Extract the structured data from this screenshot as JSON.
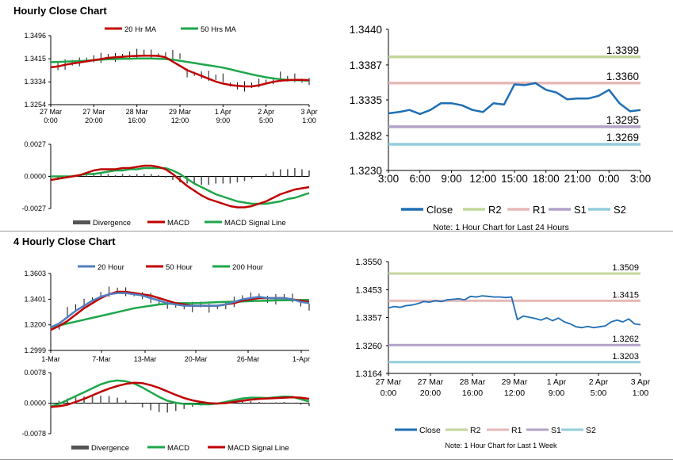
{
  "sections": {
    "hourly_title": "Hourly Close Chart",
    "four_hourly_title": "4 Hourly Close Chart"
  },
  "colors": {
    "close": "#1f6fb5",
    "ma20_hourly": "#c00000",
    "ma50_hourly": "#1fa64b",
    "ma20_4h": "#4f7fc0",
    "ma50_4h": "#c00000",
    "ma200_4h": "#1fa64b",
    "divergence": "#555555",
    "R2": "#c3d69b",
    "R1": "#e6b9b8",
    "S1": "#b3a2c7",
    "S2": "#93cddd"
  },
  "chart_data": [
    {
      "id": "hourly_price",
      "type": "line",
      "title": "Hourly Close Chart",
      "legend": [
        "20 Hr MA",
        "50 Hrs MA"
      ],
      "legend_placement": "top",
      "y_ticks": [
        "1.3496",
        "1.3415",
        "1.3334",
        "1.3254"
      ],
      "ylim": [
        1.3254,
        1.3496
      ],
      "x_ticks": [
        [
          "27 Mar",
          "0:00"
        ],
        [
          "27 Mar",
          "20:00"
        ],
        [
          "28 Mar",
          "16:00"
        ],
        [
          "29 Mar",
          "12:00"
        ],
        [
          "1 Apr",
          "9:00"
        ],
        [
          "2 Apr",
          "5:00"
        ],
        [
          "3 Apr",
          "1:00"
        ]
      ],
      "series": [
        {
          "name": "Price",
          "values": [
            1.3392,
            1.3388,
            1.3395,
            1.3401,
            1.3404,
            1.3412,
            1.3415,
            1.3418,
            1.3422,
            1.342,
            1.3425,
            1.3428,
            1.3432,
            1.3437,
            1.3432,
            1.3427,
            1.3425,
            1.3428,
            1.3424,
            1.3365,
            1.3362,
            1.3358,
            1.3355,
            1.335,
            1.3348,
            1.3325,
            1.332,
            1.3318,
            1.3322,
            1.333,
            1.3335,
            1.3338,
            1.3352,
            1.3345,
            1.3348,
            1.3338,
            1.3335
          ]
        },
        {
          "name": "20 Hr MA",
          "values": [
            1.3385,
            1.3388,
            1.3394,
            1.3398,
            1.3402,
            1.3406,
            1.341,
            1.3414,
            1.3418,
            1.342,
            1.3422,
            1.3424,
            1.3425,
            1.3426,
            1.3426,
            1.3425,
            1.342,
            1.3405,
            1.339,
            1.3375,
            1.3365,
            1.3355,
            1.3345,
            1.3335,
            1.3328,
            1.3323,
            1.332,
            1.3318,
            1.3318,
            1.3322,
            1.3328,
            1.3334,
            1.3338,
            1.334,
            1.3341,
            1.3341,
            1.334
          ]
        },
        {
          "name": "50 Hrs MA",
          "values": [
            1.3403,
            1.3404,
            1.3405,
            1.3406,
            1.3407,
            1.3408,
            1.341,
            1.3412,
            1.3413,
            1.3414,
            1.3415,
            1.3415,
            1.3416,
            1.3416,
            1.3416,
            1.3415,
            1.3414,
            1.3412,
            1.3408,
            1.3404,
            1.34,
            1.3396,
            1.3392,
            1.3388,
            1.3384,
            1.3378,
            1.3372,
            1.3366,
            1.336,
            1.3355,
            1.335,
            1.3346,
            1.3343,
            1.3341,
            1.334,
            1.3339,
            1.3338
          ]
        }
      ]
    },
    {
      "id": "hourly_macd",
      "type": "line",
      "legend": [
        "Divergence",
        "MACD",
        "MACD Signal Line"
      ],
      "legend_placement": "bottom",
      "y_ticks": [
        "0.0027",
        "0.0000",
        "-0.0027"
      ],
      "ylim": [
        -0.0027,
        0.0027
      ],
      "series": [
        {
          "name": "MACD",
          "values": [
            -0.0003,
            -0.0002,
            -0.0001,
            0.0,
            0.0001,
            0.0003,
            0.0005,
            0.0006,
            0.0006,
            0.0006,
            0.0007,
            0.0007,
            0.0008,
            0.0009,
            0.0009,
            0.0008,
            0.0006,
            0.0002,
            -0.0003,
            -0.0008,
            -0.0012,
            -0.0016,
            -0.0019,
            -0.0021,
            -0.0023,
            -0.0025,
            -0.0026,
            -0.0026,
            -0.0025,
            -0.0023,
            -0.0021,
            -0.0018,
            -0.0015,
            -0.0013,
            -0.0011,
            -0.001,
            -0.0009
          ]
        },
        {
          "name": "MACD Signal Line",
          "values": [
            0.0,
            0.0,
            0.0,
            0.0,
            0.0001,
            0.0002,
            0.0002,
            0.0003,
            0.0004,
            0.0005,
            0.0005,
            0.0006,
            0.0006,
            0.0007,
            0.0007,
            0.0007,
            0.0007,
            0.0005,
            0.0002,
            -0.0002,
            -0.0006,
            -0.0009,
            -0.0012,
            -0.0015,
            -0.0017,
            -0.0019,
            -0.0021,
            -0.0022,
            -0.0023,
            -0.0023,
            -0.0023,
            -0.0022,
            -0.0021,
            -0.0019,
            -0.0018,
            -0.0016,
            -0.0014
          ]
        },
        {
          "name": "Divergence",
          "values": [
            -0.0003,
            -0.0002,
            -0.0001,
            0.0,
            0.0,
            0.0001,
            0.0003,
            0.0003,
            0.0002,
            0.0001,
            0.0002,
            0.0001,
            0.0002,
            0.0002,
            0.0002,
            0.0001,
            -0.0001,
            -0.0003,
            -0.0005,
            -0.0006,
            -0.0006,
            -0.0007,
            -0.0007,
            -0.0006,
            -0.0006,
            -0.0006,
            -0.0005,
            -0.0004,
            -0.0002,
            0.0,
            0.0002,
            0.0004,
            0.0006,
            0.0006,
            0.0007,
            0.0006,
            0.0005
          ]
        }
      ]
    },
    {
      "id": "hourly_close_levels",
      "type": "line",
      "note": "Note: 1 Hour Chart for Last 24 Hours",
      "legend": [
        "Close",
        "R2",
        "R1",
        "S1",
        "S2"
      ],
      "legend_placement": "bottom",
      "y_ticks": [
        "1.3440",
        "1.3387",
        "1.3335",
        "1.3282",
        "1.3230"
      ],
      "ylim": [
        1.323,
        1.344
      ],
      "x_ticks": [
        "3:00",
        "6:00",
        "9:00",
        "12:00",
        "15:00",
        "18:00",
        "21:00",
        "0:00",
        "3:00"
      ],
      "levels": [
        {
          "name": "R2",
          "value": 1.3399,
          "label": "1.3399"
        },
        {
          "name": "R1",
          "value": 1.336,
          "label": "1.3360"
        },
        {
          "name": "S1",
          "value": 1.3295,
          "label": "1.3295"
        },
        {
          "name": "S2",
          "value": 1.3269,
          "label": "1.3269"
        }
      ],
      "series": [
        {
          "name": "Close",
          "values": [
            1.3315,
            1.3317,
            1.332,
            1.3314,
            1.332,
            1.333,
            1.333,
            1.3327,
            1.332,
            1.3317,
            1.333,
            1.3328,
            1.3358,
            1.3357,
            1.336,
            1.335,
            1.3346,
            1.3336,
            1.3337,
            1.3337,
            1.3341,
            1.335,
            1.333,
            1.3318,
            1.332
          ]
        }
      ]
    },
    {
      "id": "four_hourly_price",
      "type": "line",
      "title": "4 Hourly Close Chart",
      "legend": [
        "20 Hour",
        "50 Hour",
        "200 Hour"
      ],
      "legend_placement": "top",
      "y_ticks": [
        "1.3603",
        "1.3401",
        "1.3200",
        "1.2999"
      ],
      "ylim": [
        1.2999,
        1.3603
      ],
      "x_ticks": [
        "1-Mar",
        "7-Mar",
        "13-Mar",
        "20-Mar",
        "26-Mar",
        "1-Apr"
      ],
      "series": [
        {
          "name": "Price",
          "values": [
            1.317,
            1.319,
            1.33,
            1.334,
            1.337,
            1.34,
            1.343,
            1.346,
            1.347,
            1.346,
            1.344,
            1.343,
            1.341,
            1.338,
            1.336,
            1.335,
            1.335,
            1.334,
            1.336,
            1.333,
            1.334,
            1.335,
            1.338,
            1.341,
            1.342,
            1.343,
            1.34,
            1.34,
            1.342,
            1.341,
            1.336,
            1.334
          ]
        },
        {
          "name": "20 Hour",
          "values": [
            1.318,
            1.321,
            1.326,
            1.331,
            1.335,
            1.339,
            1.342,
            1.344,
            1.345,
            1.345,
            1.344,
            1.343,
            1.341,
            1.339,
            1.337,
            1.336,
            1.335,
            1.335,
            1.335,
            1.335,
            1.335,
            1.336,
            1.338,
            1.34,
            1.341,
            1.342,
            1.341,
            1.341,
            1.341,
            1.34,
            1.338,
            1.337
          ]
        },
        {
          "name": "50 Hour",
          "values": [
            1.316,
            1.319,
            1.323,
            1.328,
            1.333,
            1.337,
            1.341,
            1.344,
            1.346,
            1.346,
            1.345,
            1.344,
            1.343,
            1.341,
            1.339,
            1.337,
            1.336,
            1.335,
            1.335,
            1.335,
            1.335,
            1.336,
            1.337,
            1.339,
            1.34,
            1.341,
            1.341,
            1.341,
            1.341,
            1.34,
            1.339,
            1.338
          ]
        },
        {
          "name": "200 Hour",
          "values": [
            1.318,
            1.3195,
            1.321,
            1.3225,
            1.324,
            1.3255,
            1.327,
            1.3285,
            1.33,
            1.3315,
            1.333,
            1.334,
            1.335,
            1.336,
            1.3365,
            1.337,
            1.337,
            1.337,
            1.3372,
            1.3375,
            1.3378,
            1.338,
            1.3382,
            1.3384,
            1.3386,
            1.3388,
            1.339,
            1.3392,
            1.3393,
            1.3394,
            1.3395,
            1.3396
          ]
        }
      ]
    },
    {
      "id": "four_hourly_macd",
      "type": "line",
      "legend": [
        "Divergence",
        "MACD",
        "MACD Signal Line"
      ],
      "legend_placement": "bottom",
      "y_ticks": [
        "0.0078",
        "0.0000",
        "-0.0078"
      ],
      "ylim": [
        -0.0078,
        0.0078
      ],
      "series": [
        {
          "name": "MACD",
          "values": [
            -0.0008,
            -0.0002,
            0.0008,
            0.0018,
            0.0028,
            0.0038,
            0.0048,
            0.0055,
            0.0058,
            0.0056,
            0.005,
            0.004,
            0.0028,
            0.0016,
            0.0006,
            0.0001,
            -0.0002,
            -0.0002,
            -0.0003,
            -0.0003,
            -0.0001,
            0.0003,
            0.0008,
            0.0012,
            0.0014,
            0.0014,
            0.0013,
            0.0015,
            0.0017,
            0.0016,
            0.001,
            0.0004
          ]
        },
        {
          "name": "MACD Signal Line",
          "values": [
            -0.001,
            -0.0008,
            -0.0004,
            0.0003,
            0.0011,
            0.002,
            0.0029,
            0.0037,
            0.0044,
            0.0049,
            0.0052,
            0.0051,
            0.0046,
            0.0039,
            0.003,
            0.0021,
            0.0013,
            0.0007,
            0.0003,
            0.0,
            -0.0001,
            0.0,
            0.0003,
            0.0006,
            0.0009,
            0.0011,
            0.0012,
            0.0013,
            0.0014,
            0.0015,
            0.0014,
            0.0011
          ]
        },
        {
          "name": "Divergence",
          "values": [
            0.0002,
            0.0006,
            0.0012,
            0.0015,
            0.0017,
            0.0018,
            0.0019,
            0.0018,
            0.0014,
            0.0007,
            -0.0002,
            -0.0011,
            -0.0018,
            -0.0023,
            -0.0024,
            -0.002,
            -0.0015,
            -0.0009,
            -0.0006,
            -0.0003,
            0.0,
            0.0003,
            0.0005,
            0.0006,
            0.0005,
            0.0003,
            0.0001,
            0.0002,
            0.0003,
            0.0001,
            -0.0004,
            -0.0007
          ]
        }
      ]
    },
    {
      "id": "four_hourly_close_levels",
      "type": "line",
      "note": "Note: 1 Hour Chart for Last 1 Week",
      "legend": [
        "Close",
        "R2",
        "R1",
        "S1",
        "S2"
      ],
      "legend_placement": "bottom",
      "y_ticks": [
        "1.3550",
        "1.3453",
        "1.3357",
        "1.3260",
        "1.3164"
      ],
      "ylim": [
        1.3164,
        1.355
      ],
      "x_ticks": [
        [
          "27 Mar",
          "0:00"
        ],
        [
          "27 Mar",
          "20:00"
        ],
        [
          "28 Mar",
          "16:00"
        ],
        [
          "29 Mar",
          "12:00"
        ],
        [
          "1 Apr",
          "9:00"
        ],
        [
          "2 Apr",
          "5:00"
        ],
        [
          "3 Apr",
          "1:00"
        ]
      ],
      "levels": [
        {
          "name": "R2",
          "value": 1.3509,
          "label": "1.3509"
        },
        {
          "name": "R1",
          "value": 1.3415,
          "label": "1.3415"
        },
        {
          "name": "S1",
          "value": 1.3262,
          "label": "1.3262"
        },
        {
          "name": "S2",
          "value": 1.3203,
          "label": "1.3203"
        }
      ],
      "series": [
        {
          "name": "Close",
          "values": [
            1.339,
            1.3395,
            1.3392,
            1.3398,
            1.34,
            1.3405,
            1.3412,
            1.341,
            1.3415,
            1.3412,
            1.3418,
            1.342,
            1.3422,
            1.3418,
            1.343,
            1.3428,
            1.3432,
            1.343,
            1.3428,
            1.3428,
            1.3426,
            1.3428,
            1.335,
            1.3362,
            1.3358,
            1.3354,
            1.3348,
            1.3356,
            1.3346,
            1.3355,
            1.3342,
            1.3335,
            1.3325,
            1.3322,
            1.3326,
            1.3322,
            1.3325,
            1.3328,
            1.3342,
            1.3348,
            1.3342,
            1.3352,
            1.3335,
            1.3332
          ]
        }
      ]
    }
  ]
}
